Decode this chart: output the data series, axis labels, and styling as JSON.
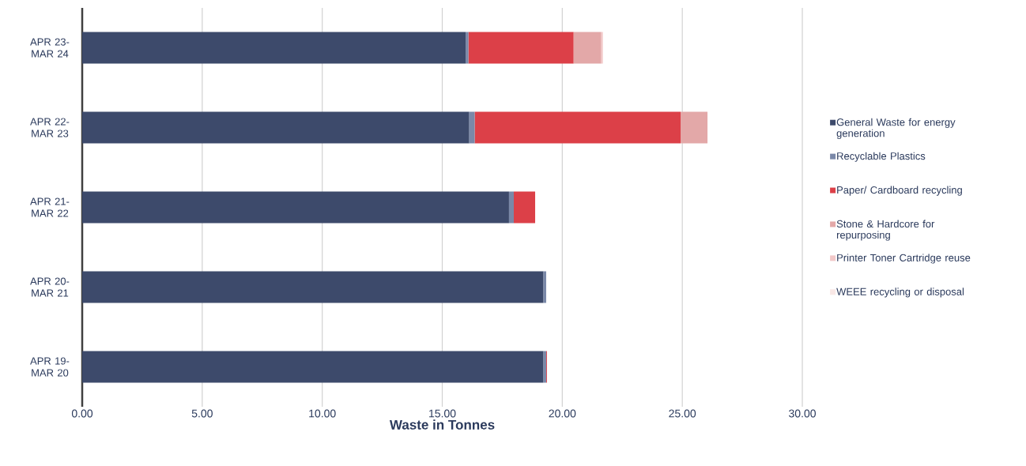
{
  "chart_data": {
    "type": "bar",
    "orientation": "horizontal",
    "stacked": true,
    "xlabel": "Waste in Tonnes",
    "categories": [
      "APR 23- MAR 24",
      "APR 22- MAR 23",
      "APR 21- MAR 22",
      "APR 20- MAR 21",
      "APR 19- MAR 20"
    ],
    "series": [
      {
        "name": "General Waste for energy generation",
        "color": "#3d4a6b",
        "values": [
          15.98,
          16.12,
          17.78,
          19.21,
          19.21
        ]
      },
      {
        "name": "Recyclable Plastics",
        "color": "#7a88a8",
        "values": [
          0.11,
          0.23,
          0.2,
          0.12,
          0.12
        ]
      },
      {
        "name": "Paper/ Cardboard recycling",
        "color": "#dc4048",
        "values": [
          4.38,
          8.58,
          0.89,
          0,
          0.03
        ]
      },
      {
        "name": "Stone & Hardcore for repurposing",
        "color": "#e3a8a8",
        "values": [
          1.15,
          1.12,
          0,
          0,
          0
        ]
      },
      {
        "name": "Printer Toner Cartridge reuse",
        "color": "#f2c8c8",
        "values": [
          0.07,
          null,
          0,
          0,
          0
        ]
      },
      {
        "name": "WEEE recycling or disposal",
        "color": "#f9e8e6",
        "values": [
          0,
          0,
          0,
          0,
          0
        ]
      }
    ],
    "xlim": [
      0,
      30
    ],
    "xticks": [
      {
        "value": 0,
        "label": "0.00"
      },
      {
        "value": 5,
        "label": "5.00"
      },
      {
        "value": 10,
        "label": "10.00"
      },
      {
        "value": 15,
        "label": "15.00"
      },
      {
        "value": 20,
        "label": "20.00"
      },
      {
        "value": 25,
        "label": "25.00"
      },
      {
        "value": 30,
        "label": "30.00"
      }
    ],
    "grid": "x",
    "legend": "right"
  }
}
